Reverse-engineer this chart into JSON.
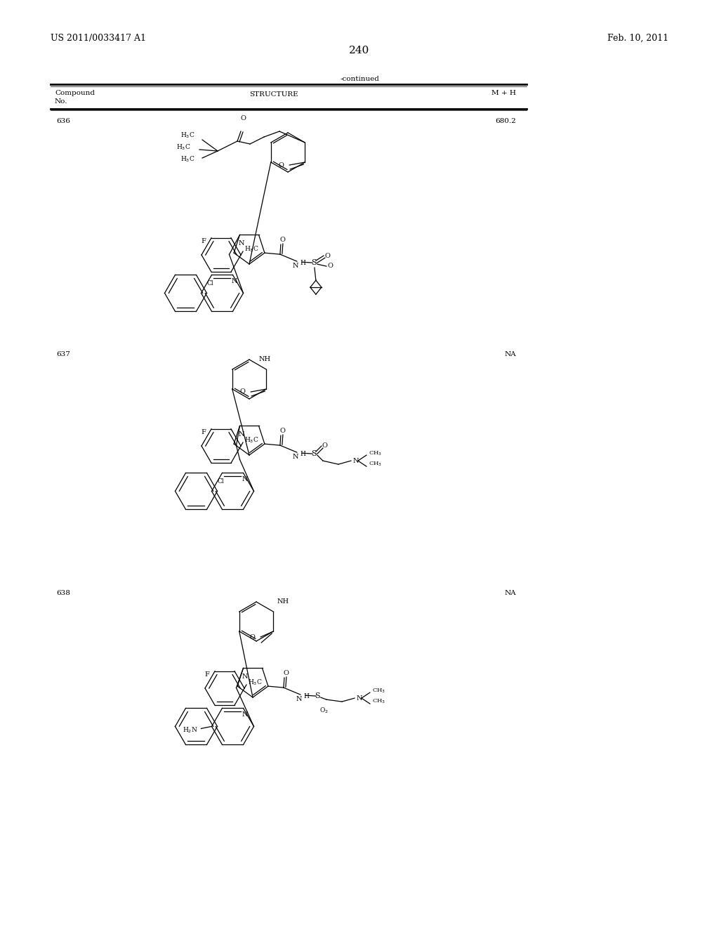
{
  "background_color": "#ffffff",
  "header_left": "US 2011/0033417 A1",
  "header_right": "Feb. 10, 2011",
  "page_number": "240",
  "continued_text": "-continued",
  "col1_label": "Compound\nNo.",
  "col2_label": "STRUCTURE",
  "col3_label": "M + H",
  "compound_nos": [
    "636",
    "637",
    "638"
  ],
  "mh_vals": [
    "680.2",
    "NA",
    "NA"
  ],
  "font_size_small": 7.5,
  "font_size_medium": 9,
  "font_size_large": 11
}
